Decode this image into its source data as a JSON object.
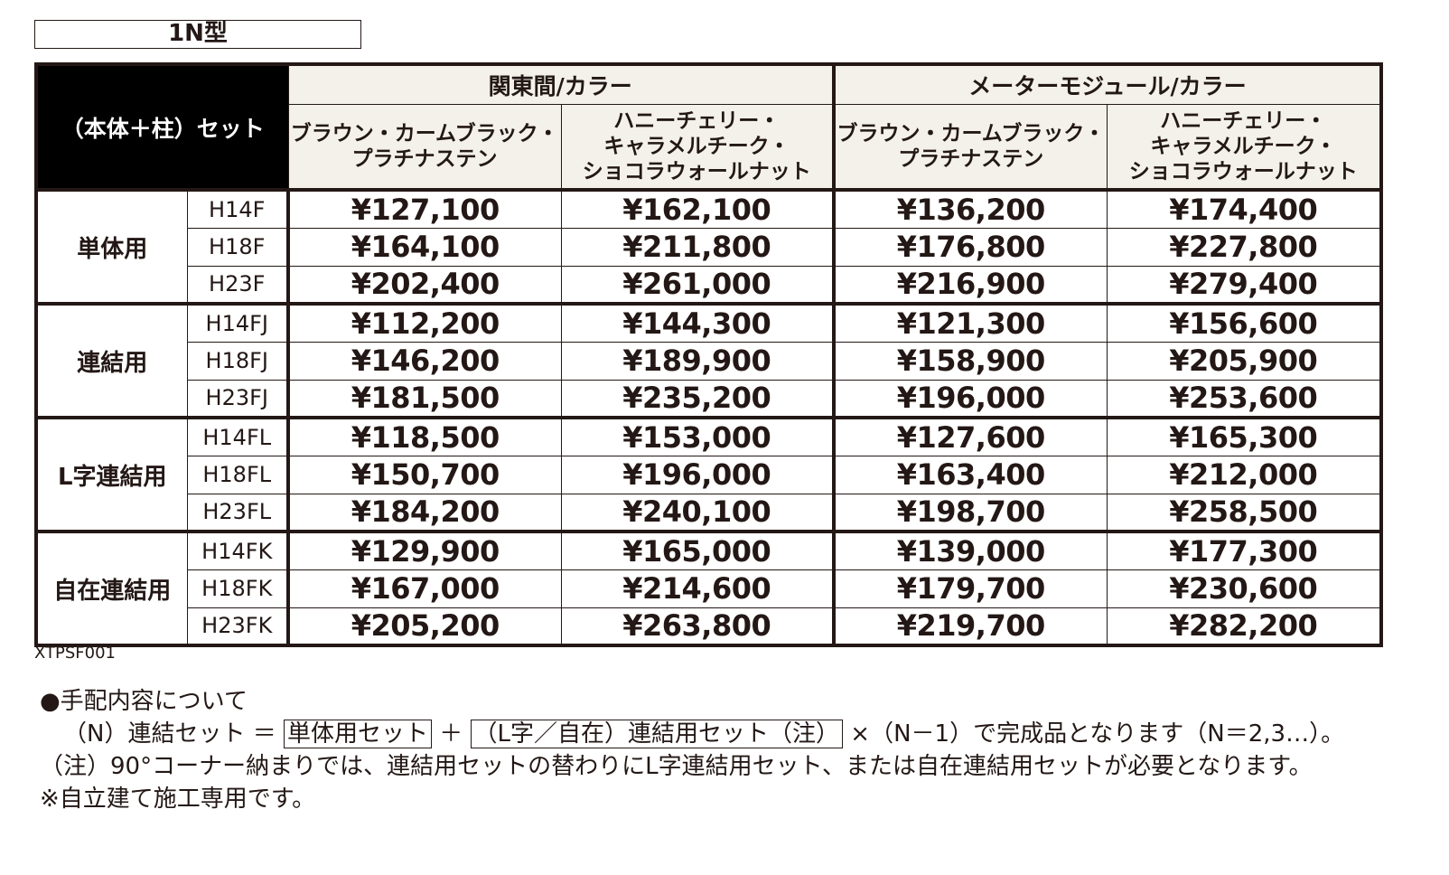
{
  "type_label": "1N型",
  "table": {
    "corner_header": "（本体＋柱）セット",
    "group_headers": [
      "関東間/カラー",
      "メーターモジュール/カラー"
    ],
    "color_headers": [
      [
        "ブラウン・カームブラック・",
        "プラチナステン"
      ],
      [
        "ハニーチェリー・",
        "キャラメルチーク・",
        "ショコラウォールナット"
      ],
      [
        "ブラウン・カームブラック・",
        "プラチナステン"
      ],
      [
        "ハニーチェリー・",
        "キャラメルチーク・",
        "ショコラウォールナット"
      ]
    ],
    "sections": [
      {
        "category": "単体用",
        "rows": [
          {
            "model": "H14F",
            "prices": [
              "¥127,100",
              "¥162,100",
              "¥136,200",
              "¥174,400"
            ]
          },
          {
            "model": "H18F",
            "prices": [
              "¥164,100",
              "¥211,800",
              "¥176,800",
              "¥227,800"
            ]
          },
          {
            "model": "H23F",
            "prices": [
              "¥202,400",
              "¥261,000",
              "¥216,900",
              "¥279,400"
            ]
          }
        ]
      },
      {
        "category": "連結用",
        "rows": [
          {
            "model": "H14FJ",
            "prices": [
              "¥112,200",
              "¥144,300",
              "¥121,300",
              "¥156,600"
            ]
          },
          {
            "model": "H18FJ",
            "prices": [
              "¥146,200",
              "¥189,900",
              "¥158,900",
              "¥205,900"
            ]
          },
          {
            "model": "H23FJ",
            "prices": [
              "¥181,500",
              "¥235,200",
              "¥196,000",
              "¥253,600"
            ]
          }
        ]
      },
      {
        "category": "L字連結用",
        "rows": [
          {
            "model": "H14FL",
            "prices": [
              "¥118,500",
              "¥153,000",
              "¥127,600",
              "¥165,300"
            ]
          },
          {
            "model": "H18FL",
            "prices": [
              "¥150,700",
              "¥196,000",
              "¥163,400",
              "¥212,000"
            ]
          },
          {
            "model": "H23FL",
            "prices": [
              "¥184,200",
              "¥240,100",
              "¥198,700",
              "¥258,500"
            ]
          }
        ]
      },
      {
        "category": "自在連結用",
        "rows": [
          {
            "model": "H14FK",
            "prices": [
              "¥129,900",
              "¥165,000",
              "¥139,000",
              "¥177,300"
            ]
          },
          {
            "model": "H18FK",
            "prices": [
              "¥167,000",
              "¥214,600",
              "¥179,700",
              "¥230,600"
            ]
          },
          {
            "model": "H23FK",
            "prices": [
              "¥205,200",
              "¥263,800",
              "¥219,700",
              "¥282,200"
            ]
          }
        ]
      }
    ]
  },
  "product_code": "XTPSF001",
  "notes": {
    "heading": "●手配内容について",
    "formula_prefix": "（N）連結セット ＝ ",
    "formula_box1": "単体用セット",
    "formula_plus": " ＋ ",
    "formula_box2": "（L字／自在）連結用セット（注）",
    "formula_suffix": " ×（N－1）で完成品となります（N＝2,3…）。",
    "line2": "（注）90°コーナー納まりでは、連結用セットの替わりにL字連結用セット、または自在連結用セットが必要となります。",
    "line3": "※自立建て施工専用です。"
  }
}
